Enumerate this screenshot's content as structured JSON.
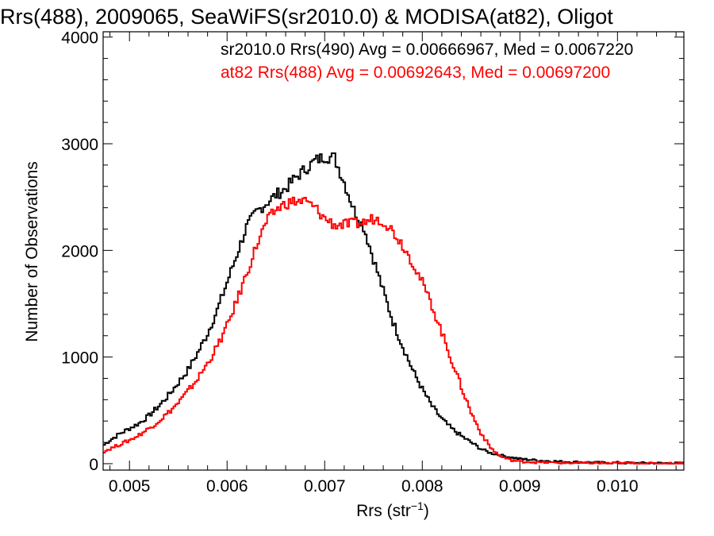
{
  "chart_data": {
    "type": "line",
    "title": "Rrs(488), 2009065, SeaWiFS(sr2010.0) & MODISA(at82), Oligot",
    "xlabel": "Rrs (str⁻¹)",
    "ylabel": "Number of Observations",
    "xlim": [
      0.00473,
      0.01068
    ],
    "ylim": [
      -60,
      4050
    ],
    "x_ticks": [
      0.005,
      0.006,
      0.007,
      0.008,
      0.009,
      0.01
    ],
    "x_tick_labels": [
      "0.005",
      "0.006",
      "0.007",
      "0.008",
      "0.009",
      "0.010"
    ],
    "y_ticks": [
      0,
      1000,
      2000,
      3000,
      4000
    ],
    "y_tick_labels": [
      "0",
      "1000",
      "2000",
      "3000",
      "4000"
    ],
    "grid": false,
    "legend_position": "top",
    "series": [
      {
        "name": "sr2010.0 Rrs(490) Avg = 0.00666967, Med = 0.0067220",
        "color": "#000000",
        "x": [
          0.00473,
          0.0048,
          0.0049,
          0.005,
          0.0051,
          0.0052,
          0.0053,
          0.0054,
          0.0055,
          0.0056,
          0.0057,
          0.0058,
          0.0059,
          0.006,
          0.0061,
          0.0062,
          0.0063,
          0.0064,
          0.0065,
          0.0066,
          0.0067,
          0.0068,
          0.0069,
          0.007,
          0.0071,
          0.0072,
          0.0073,
          0.0074,
          0.0075,
          0.0076,
          0.0077,
          0.0078,
          0.0079,
          0.008,
          0.0081,
          0.0082,
          0.0083,
          0.0084,
          0.0085,
          0.0086,
          0.0087,
          0.0088,
          0.0089,
          0.009,
          0.0092,
          0.0094,
          0.0096,
          0.0098,
          0.01,
          0.0102,
          0.0104,
          0.01068
        ],
        "values": [
          170,
          220,
          280,
          330,
          380,
          450,
          540,
          640,
          760,
          880,
          1040,
          1220,
          1440,
          1700,
          1960,
          2220,
          2360,
          2440,
          2520,
          2580,
          2680,
          2760,
          2840,
          2880,
          2870,
          2640,
          2380,
          2220,
          1920,
          1620,
          1330,
          1100,
          880,
          700,
          540,
          420,
          330,
          260,
          200,
          140,
          100,
          80,
          60,
          45,
          30,
          20,
          15,
          10,
          8,
          6,
          5,
          4
        ]
      },
      {
        "name": "at82 Rrs(488) Avg = 0.00692643, Med = 0.00697200",
        "color": "#ff0000",
        "x": [
          0.00473,
          0.0048,
          0.0049,
          0.005,
          0.0051,
          0.0052,
          0.0053,
          0.0054,
          0.0055,
          0.0056,
          0.0057,
          0.0058,
          0.0059,
          0.006,
          0.0061,
          0.0062,
          0.0063,
          0.0064,
          0.0065,
          0.0066,
          0.0067,
          0.0068,
          0.0069,
          0.007,
          0.0071,
          0.0072,
          0.0073,
          0.0074,
          0.0075,
          0.0076,
          0.0077,
          0.0078,
          0.0079,
          0.008,
          0.0081,
          0.0082,
          0.0083,
          0.0084,
          0.0085,
          0.0086,
          0.0087,
          0.0088,
          0.0089,
          0.009,
          0.0092,
          0.0094,
          0.0096,
          0.0098,
          0.01,
          0.0102,
          0.0104,
          0.01068
        ],
        "values": [
          110,
          140,
          180,
          220,
          270,
          330,
          400,
          480,
          570,
          680,
          800,
          940,
          1100,
          1290,
          1530,
          1780,
          2040,
          2260,
          2380,
          2440,
          2460,
          2460,
          2400,
          2300,
          2240,
          2240,
          2250,
          2260,
          2300,
          2280,
          2180,
          2050,
          1890,
          1700,
          1480,
          1230,
          970,
          720,
          480,
          290,
          150,
          70,
          35,
          20,
          12,
          8,
          6,
          5,
          4,
          3,
          2,
          2
        ]
      }
    ]
  }
}
